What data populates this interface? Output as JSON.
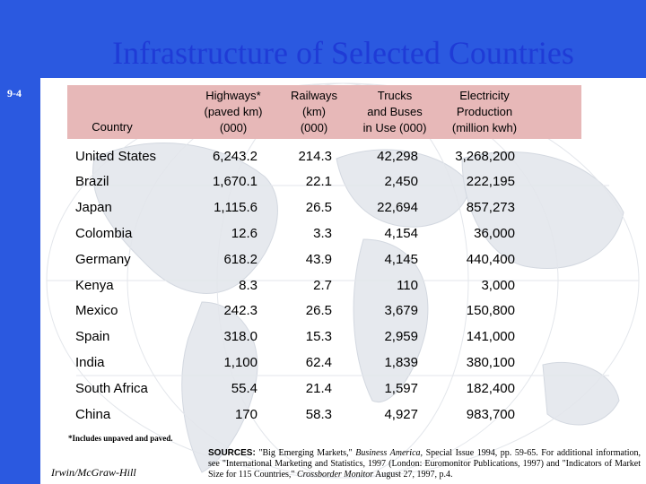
{
  "slide": {
    "title": "Infrastructure of Selected Countries",
    "number": "9-4",
    "accent_color": "#2b59e0"
  },
  "table": {
    "headers": {
      "country": "Country",
      "highways": [
        "Highways*",
        "(paved km)",
        "(000)"
      ],
      "railways": [
        "Railways",
        "(km)",
        "(000)"
      ],
      "trucks": [
        "Trucks",
        "and Buses",
        "in Use (000)"
      ],
      "electricity": [
        "Electricity",
        "Production",
        "(million kwh)"
      ]
    },
    "rows": [
      {
        "country": "United States",
        "highways": "6,243.2",
        "railways": "214.3",
        "trucks": "42,298",
        "electricity": "3,268,200"
      },
      {
        "country": "Brazil",
        "highways": "1,670.1",
        "railways": "22.1",
        "trucks": "2,450",
        "electricity": "222,195"
      },
      {
        "country": "Japan",
        "highways": "1,115.6",
        "railways": "26.5",
        "trucks": "22,694",
        "electricity": "857,273"
      },
      {
        "country": "Colombia",
        "highways": "12.6",
        "railways": "3.3",
        "trucks": "4,154",
        "electricity": "36,000"
      },
      {
        "country": "Germany",
        "highways": "618.2",
        "railways": "43.9",
        "trucks": "4,145",
        "electricity": "440,400"
      },
      {
        "country": "Kenya",
        "highways": "8.3",
        "railways": "2.7",
        "trucks": "110",
        "electricity": "3,000"
      },
      {
        "country": "Mexico",
        "highways": "242.3",
        "railways": "26.5",
        "trucks": "3,679",
        "electricity": "150,800"
      },
      {
        "country": "Spain",
        "highways": "318.0",
        "railways": "15.3",
        "trucks": "2,959",
        "electricity": "141,000"
      },
      {
        "country": "India",
        "highways": "1,100",
        "railways": "62.4",
        "trucks": "1,839",
        "electricity": "380,100"
      },
      {
        "country": "South Africa",
        "highways": "55.4",
        "railways": "21.4",
        "trucks": "1,597",
        "electricity": "182,400"
      },
      {
        "country": "China",
        "highways": "170",
        "railways": "58.3",
        "trucks": "4,927",
        "electricity": "983,700"
      }
    ]
  },
  "footnote": "*Includes unpaved and paved.",
  "publisher": "Irwin/McGraw-Hill",
  "sources": {
    "label": "SOURCES:",
    "part1": "\"Big Emerging Markets,\"",
    "pub1": "Business America,",
    "part2": "Special Issue 1994, pp. 59-65. For additional information, see \"International Marketing and Statistics, 1997 (London: Euromonitor Publications, 1997) and \"Indicators of Market Size for 115 Countries,\"",
    "pub2": "Crossborder Monitor",
    "part3": "August 27, 1997, p.4."
  }
}
